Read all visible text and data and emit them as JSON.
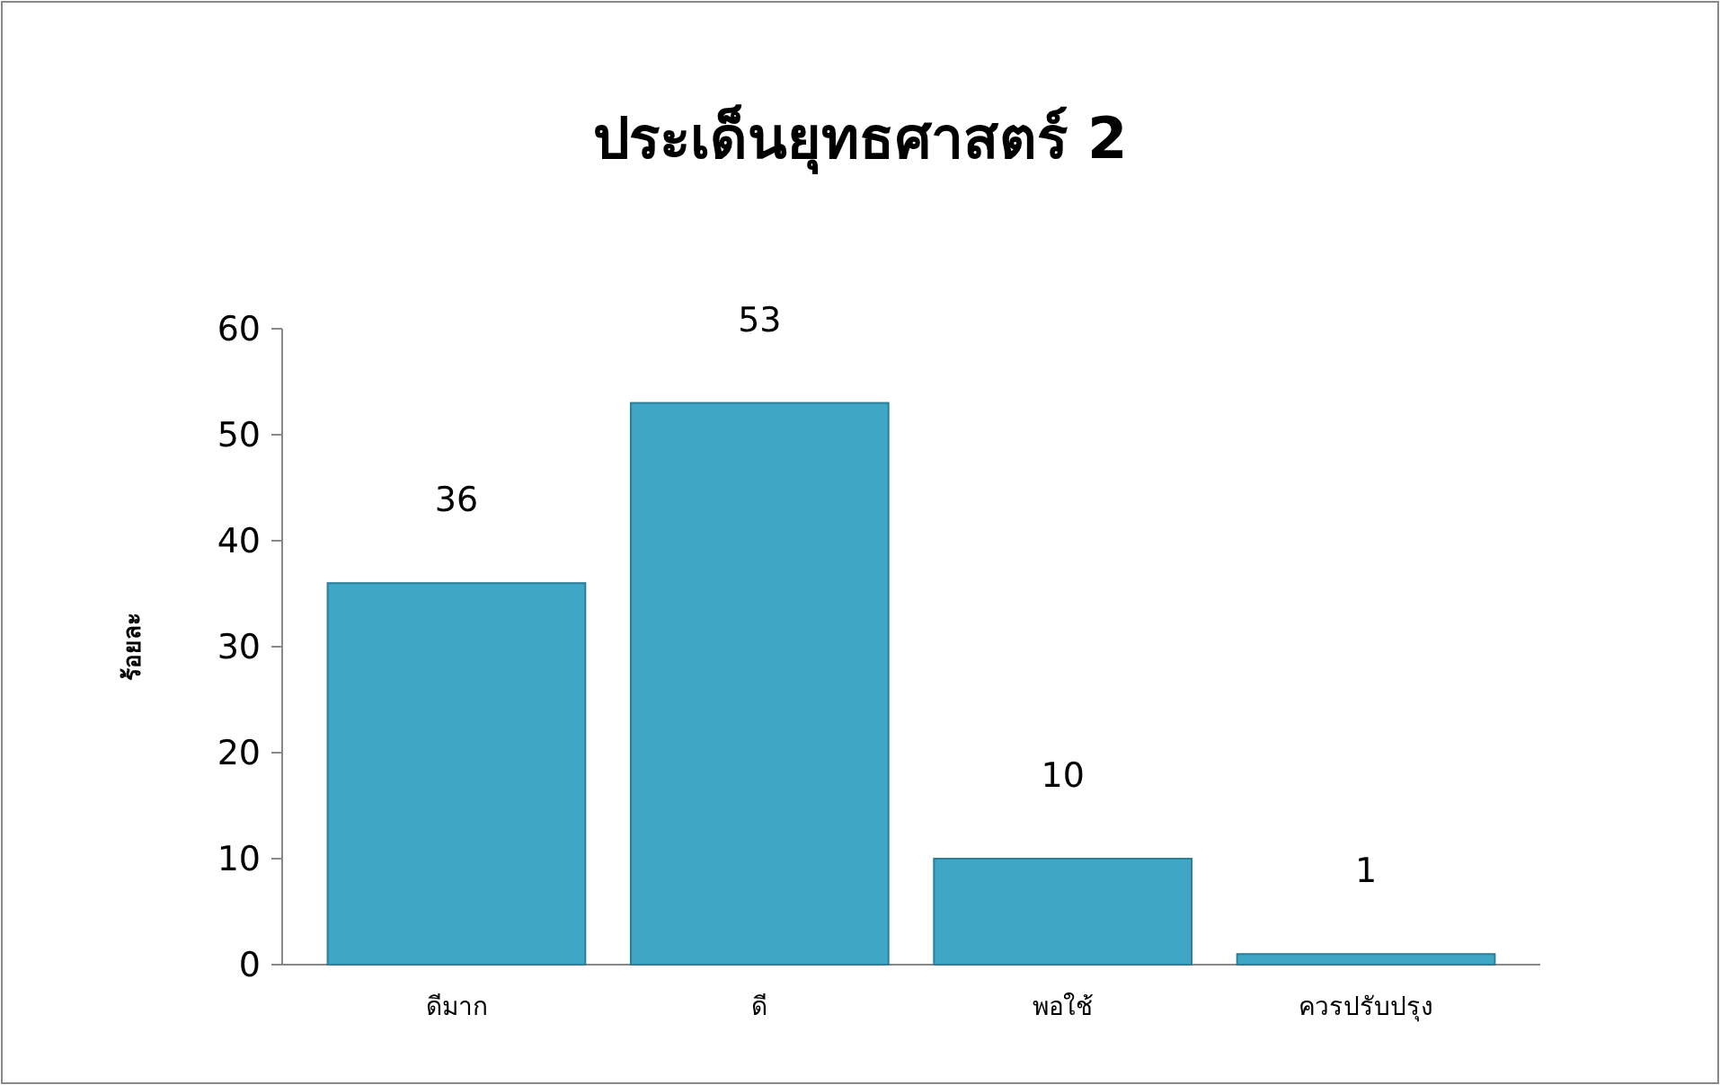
{
  "chart_data": {
    "type": "bar",
    "title": "ประเด็นยุทธศาสตร์ 2",
    "ylabel": "ร้อยละ",
    "categories": [
      "ดีมาก",
      "ดี",
      "พอใช้",
      "ควรปรับปรุง"
    ],
    "values": [
      36,
      53,
      10,
      1
    ],
    "color": "#3fa6c6",
    "ylim": [
      0,
      60
    ],
    "yticks": [
      0,
      10,
      20,
      30,
      40,
      50,
      60
    ],
    "data_labels": true
  }
}
